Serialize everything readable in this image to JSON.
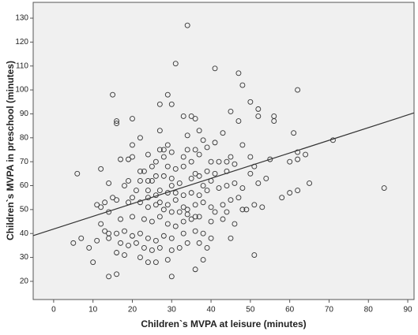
{
  "chart_data": {
    "type": "scatter",
    "x_label": "Children`s MVPA at leisure (minutes)",
    "y_label": "Children`s MVPA in preschool (minutes)",
    "xlim": [
      -5.2,
      91.6
    ],
    "ylim": [
      12.4,
      136.6
    ],
    "xticks": [
      0,
      10,
      20,
      30,
      40,
      50,
      60,
      70,
      80,
      90
    ],
    "yticks": [
      20,
      30,
      40,
      50,
      60,
      70,
      80,
      90,
      100,
      110,
      120,
      130
    ],
    "color": "#333333",
    "background": "#f0f0f0",
    "fit_line": {
      "x": [
        -5.2,
        91.6
      ],
      "y": [
        39.1,
        90.4
      ]
    },
    "x": [
      34,
      31,
      41,
      47,
      48,
      62,
      15,
      29,
      27,
      30,
      50,
      52,
      45,
      33,
      35,
      36,
      52,
      56,
      56,
      16,
      16,
      20,
      47,
      27,
      37,
      34,
      43,
      61,
      22,
      38,
      41,
      48,
      20,
      29,
      34,
      27,
      28,
      30,
      36,
      71,
      62,
      64,
      62,
      55,
      60,
      6,
      17,
      24,
      23,
      29,
      31,
      33,
      25,
      12,
      19,
      20,
      26,
      40,
      42,
      44,
      46,
      50,
      51,
      39,
      41,
      44,
      37,
      35,
      28,
      32,
      30,
      25,
      22,
      19,
      18,
      14,
      21,
      24,
      27,
      29,
      31,
      33,
      35,
      37,
      39,
      42,
      44,
      46,
      48,
      52,
      54,
      58,
      60,
      62,
      65,
      84,
      15,
      16,
      13,
      12,
      11,
      19,
      22,
      24,
      26,
      28,
      30,
      33,
      34,
      36,
      38,
      40,
      43,
      45,
      47,
      49,
      51,
      53,
      14,
      17,
      20,
      23,
      25,
      27,
      29,
      31,
      33,
      35,
      37,
      40,
      43,
      46,
      13,
      14,
      16,
      18,
      20,
      22,
      24,
      26,
      28,
      30,
      33,
      36,
      38,
      40,
      45,
      5,
      9,
      11,
      14,
      17,
      19,
      21,
      23,
      25,
      27,
      30,
      32,
      34,
      37,
      39,
      16,
      18,
      22,
      24,
      26,
      29,
      38,
      51,
      10,
      14,
      16,
      30,
      36,
      7,
      12,
      27,
      29,
      31,
      24,
      26,
      20,
      32,
      34,
      36,
      41,
      44,
      48,
      38,
      40,
      36,
      30,
      26,
      22,
      33,
      35,
      37,
      39,
      28,
      24,
      45,
      50
    ],
    "y": [
      127,
      111,
      109,
      107,
      102,
      100,
      98,
      98,
      94,
      94,
      95,
      92,
      91,
      89,
      89,
      88,
      89,
      89,
      87,
      87,
      86,
      88,
      87,
      83,
      83,
      81,
      82,
      82,
      80,
      79,
      78,
      77,
      77,
      77,
      75,
      75,
      75,
      74,
      75,
      79,
      74,
      73,
      71,
      71,
      70,
      65,
      71,
      73,
      66,
      68,
      67,
      68,
      68,
      67,
      71,
      72,
      70,
      70,
      70,
      70,
      69,
      72,
      68,
      66,
      65,
      66,
      64,
      63,
      64,
      61,
      60,
      62,
      62,
      62,
      60,
      61,
      58,
      58,
      58,
      57,
      57,
      56,
      57,
      56,
      58,
      59,
      60,
      61,
      59,
      61,
      63,
      55,
      57,
      58,
      61,
      59,
      55,
      54,
      53,
      51,
      52,
      53,
      53,
      51,
      52,
      50,
      49,
      51,
      50,
      52,
      53,
      51,
      52,
      54,
      55,
      50,
      52,
      51,
      49,
      46,
      47,
      46,
      45,
      47,
      44,
      43,
      45,
      46,
      47,
      45,
      46,
      44,
      41,
      40,
      40,
      41,
      39,
      40,
      38,
      37,
      39,
      38,
      40,
      41,
      40,
      38,
      38,
      36,
      34,
      37,
      38,
      36,
      35,
      36,
      34,
      33,
      34,
      33,
      34,
      36,
      36,
      34,
      32,
      31,
      30,
      28,
      28,
      29,
      29,
      31,
      28,
      22,
      23,
      22,
      25,
      38,
      44,
      53,
      52,
      54,
      55,
      56,
      55,
      49,
      48,
      47,
      49,
      49,
      50,
      60,
      62,
      65,
      63,
      64,
      66,
      72,
      70,
      73,
      76,
      72,
      62,
      72,
      65
    ]
  }
}
